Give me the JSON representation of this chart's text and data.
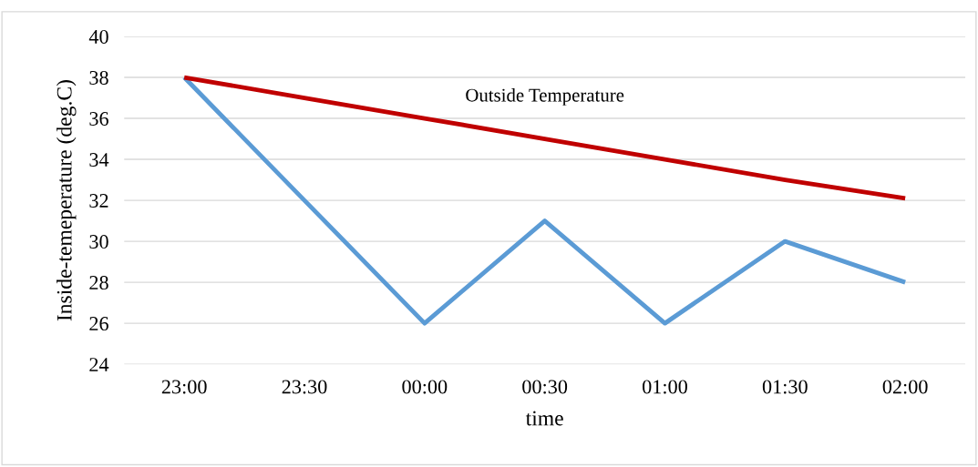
{
  "chart_data": {
    "type": "line",
    "xlabel": "time",
    "ylabel": "Inside-temeperature (deg.C)",
    "categories": [
      "23:00",
      "23:30",
      "00:00",
      "00:30",
      "01:00",
      "01:30",
      "02:00"
    ],
    "ylim": [
      24,
      40
    ],
    "yticks": [
      24,
      26,
      28,
      30,
      32,
      34,
      36,
      38,
      40
    ],
    "grid": "y",
    "legend": false,
    "marker": "none",
    "line_style": "solid",
    "series": [
      {
        "color": "#5b9bd5",
        "values": [
          38,
          32,
          26,
          31,
          26,
          30,
          28
        ]
      },
      {
        "name": "Outside Temperature",
        "color": "#c00000",
        "values": [
          38,
          37,
          36,
          35,
          34,
          33,
          32.1
        ]
      }
    ]
  }
}
